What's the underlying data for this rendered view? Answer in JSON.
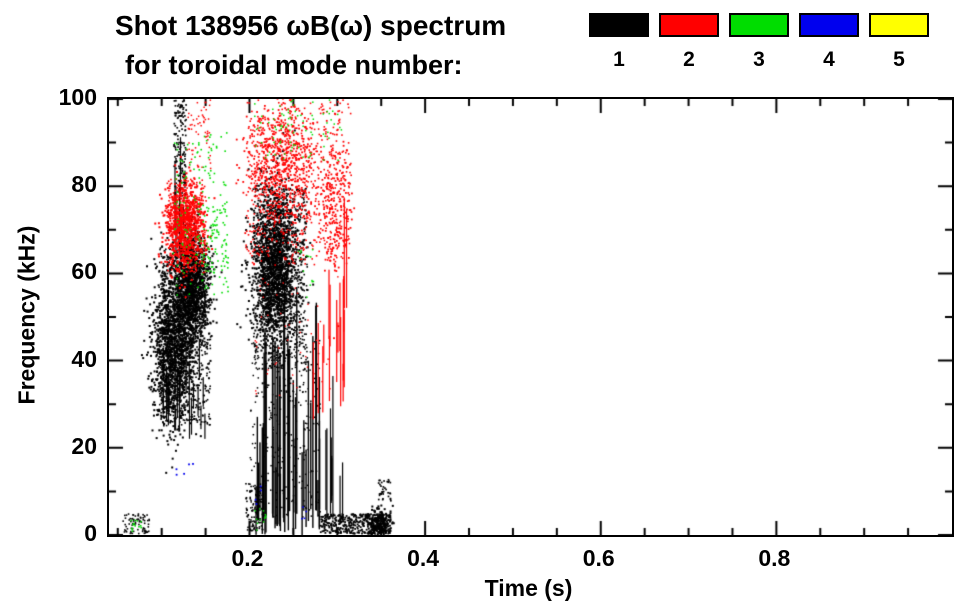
{
  "header": {
    "title": "Shot 138956 ωB(ω) spectrum",
    "subtitle": "for toroidal mode number:",
    "legend": [
      {
        "label": "1",
        "color": "#000000"
      },
      {
        "label": "2",
        "color": "#ff0000"
      },
      {
        "label": "3",
        "color": "#00dd00"
      },
      {
        "label": "4",
        "color": "#0000ee"
      },
      {
        "label": "5",
        "color": "#ffff00"
      }
    ]
  },
  "chart_data": {
    "type": "scatter",
    "title": "Shot 138956 ωB(ω) spectrum",
    "legend_title": "for toroidal mode number:",
    "xlabel": "Time (s)",
    "ylabel": "Frequency (kHz)",
    "xlim": [
      0.04,
      1.0
    ],
    "ylim": [
      0,
      100
    ],
    "grid": false,
    "legend_position": "top-right",
    "xticks": [
      0.2,
      0.4,
      0.6,
      0.8
    ],
    "xtick_labels": [
      "0.2",
      "0.4",
      "0.6",
      "0.8"
    ],
    "xtick_minor_step": 0.05,
    "yticks": [
      0,
      20,
      40,
      60,
      80,
      100
    ],
    "ytick_labels": [
      "0",
      "20",
      "40",
      "60",
      "80",
      "100"
    ],
    "ytick_minor_step": 10,
    "series": [
      {
        "name": "1",
        "color": "#000000"
      },
      {
        "name": "2",
        "color": "#ff0000"
      },
      {
        "name": "3",
        "color": "#00dd00"
      },
      {
        "name": "4",
        "color": "#0000ee"
      },
      {
        "name": "5",
        "color": "#ffff00"
      }
    ],
    "clusters": [
      {
        "mode": 1,
        "type": "gauss",
        "cx": 0.112,
        "cy": 44,
        "sx": 0.012,
        "sy": 9,
        "n": 1500,
        "size": 2
      },
      {
        "mode": 1,
        "type": "gauss",
        "cx": 0.133,
        "cy": 57,
        "sx": 0.01,
        "sy": 6,
        "n": 1300,
        "size": 2
      },
      {
        "mode": 1,
        "type": "points",
        "t": [
          0.096,
          0.155
        ],
        "f": [
          25,
          66
        ],
        "n": 600,
        "size": 1.6
      },
      {
        "mode": 1,
        "type": "streaks",
        "t": [
          0.1,
          0.15
        ],
        "fb": [
          22,
          38
        ],
        "len": [
          3,
          12
        ],
        "n": 28,
        "w": 1.2
      },
      {
        "mode": 1,
        "type": "points",
        "t": [
          0.113,
          0.127
        ],
        "f": [
          78,
          100
        ],
        "n": 150,
        "size": 1.7
      },
      {
        "mode": 1,
        "type": "streaks",
        "t": [
          0.114,
          0.126
        ],
        "fb": [
          60,
          80
        ],
        "len": [
          4,
          18
        ],
        "n": 10,
        "w": 1.2
      },
      {
        "mode": 1,
        "type": "gauss",
        "cx": 0.228,
        "cy": 62,
        "sx": 0.013,
        "sy": 9,
        "n": 1800,
        "size": 2
      },
      {
        "mode": 1,
        "type": "points",
        "t": [
          0.203,
          0.265
        ],
        "f": [
          38,
          80
        ],
        "n": 650,
        "size": 1.6
      },
      {
        "mode": 1,
        "type": "streaks",
        "t": [
          0.205,
          0.28
        ],
        "fb": [
          0,
          6
        ],
        "len": [
          8,
          55
        ],
        "n": 45,
        "w": 1.4
      },
      {
        "mode": 1,
        "type": "points",
        "t": [
          0.2,
          0.28
        ],
        "f": [
          4,
          45
        ],
        "n": 300,
        "size": 1.5
      },
      {
        "mode": 1,
        "type": "points",
        "t": [
          0.28,
          0.36
        ],
        "f": [
          0.5,
          5
        ],
        "n": 400,
        "size": 1.8
      },
      {
        "mode": 1,
        "type": "gauss",
        "cx": 0.346,
        "cy": 3,
        "sx": 0.007,
        "sy": 1.8,
        "n": 220,
        "size": 2
      },
      {
        "mode": 1,
        "type": "points",
        "t": [
          0.055,
          0.085
        ],
        "f": [
          0.5,
          5
        ],
        "n": 80,
        "size": 1.6
      },
      {
        "mode": 1,
        "type": "points",
        "t": [
          0.195,
          0.215
        ],
        "f": [
          1,
          12
        ],
        "n": 110,
        "size": 1.6
      },
      {
        "mode": 1,
        "type": "streaks",
        "t": [
          0.285,
          0.315
        ],
        "fb": [
          2,
          10
        ],
        "len": [
          4,
          35
        ],
        "n": 9,
        "w": 1.2
      },
      {
        "mode": 1,
        "type": "points",
        "t": [
          0.345,
          0.36
        ],
        "f": [
          8,
          13
        ],
        "n": 35,
        "size": 1.7
      },
      {
        "mode": 2,
        "type": "gauss",
        "cx": 0.125,
        "cy": 71,
        "sx": 0.011,
        "sy": 5,
        "n": 800,
        "size": 2
      },
      {
        "mode": 2,
        "type": "points",
        "t": [
          0.105,
          0.15
        ],
        "f": [
          60,
          82
        ],
        "n": 260,
        "size": 1.6
      },
      {
        "mode": 2,
        "type": "points",
        "t": [
          0.128,
          0.155
        ],
        "f": [
          84,
          100
        ],
        "n": 60,
        "size": 1.5
      },
      {
        "mode": 2,
        "type": "points",
        "t": [
          0.195,
          0.315
        ],
        "f": [
          62,
          100
        ],
        "n": 650,
        "size": 1.6
      },
      {
        "mode": 2,
        "type": "gauss",
        "cx": 0.235,
        "cy": 85,
        "sx": 0.018,
        "sy": 7,
        "n": 600,
        "size": 1.8
      },
      {
        "mode": 2,
        "type": "gauss",
        "cx": 0.295,
        "cy": 76,
        "sx": 0.009,
        "sy": 8,
        "n": 220,
        "size": 1.8
      },
      {
        "mode": 2,
        "type": "streaks",
        "t": [
          0.27,
          0.312
        ],
        "fb": [
          26,
          45
        ],
        "len": [
          6,
          22
        ],
        "n": 13,
        "w": 1.2
      },
      {
        "mode": 2,
        "type": "streaks",
        "t": [
          0.298,
          0.31
        ],
        "fb": [
          35,
          55
        ],
        "len": [
          12,
          30
        ],
        "n": 5,
        "w": 1.2
      },
      {
        "mode": 2,
        "type": "points",
        "t": [
          0.205,
          0.3
        ],
        "f": [
          32,
          60
        ],
        "n": 50,
        "size": 1.4
      },
      {
        "mode": 3,
        "type": "points",
        "t": [
          0.112,
          0.175
        ],
        "f": [
          55,
          93
        ],
        "n": 150,
        "size": 1.6
      },
      {
        "mode": 3,
        "type": "points",
        "t": [
          0.145,
          0.175
        ],
        "f": [
          60,
          76
        ],
        "n": 70,
        "size": 1.6
      },
      {
        "mode": 3,
        "type": "points",
        "t": [
          0.205,
          0.305
        ],
        "f": [
          86,
          100
        ],
        "n": 80,
        "size": 1.5
      },
      {
        "mode": 3,
        "type": "points",
        "t": [
          0.064,
          0.076
        ],
        "f": [
          1,
          4
        ],
        "n": 14,
        "size": 1.6
      },
      {
        "mode": 3,
        "type": "points",
        "t": [
          0.205,
          0.222
        ],
        "f": [
          1,
          7
        ],
        "n": 12,
        "size": 1.5
      },
      {
        "mode": 3,
        "type": "points",
        "t": [
          0.253,
          0.272
        ],
        "f": [
          54,
          66
        ],
        "n": 14,
        "size": 1.5
      },
      {
        "mode": 4,
        "type": "points",
        "t": [
          0.115,
          0.135
        ],
        "f": [
          14,
          20
        ],
        "n": 5,
        "size": 1.8
      },
      {
        "mode": 4,
        "type": "points",
        "t": [
          0.205,
          0.215
        ],
        "f": [
          7,
          12
        ],
        "n": 4,
        "size": 1.8
      },
      {
        "mode": 4,
        "type": "points",
        "t": [
          0.255,
          0.265
        ],
        "f": [
          3,
          7
        ],
        "n": 4,
        "size": 1.6
      }
    ]
  }
}
